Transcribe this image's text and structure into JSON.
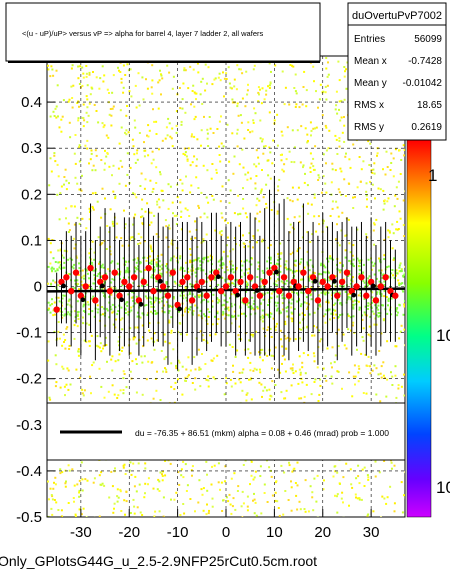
{
  "title": "<(u - uP)/uP> versus   vP => alpha for barrel 4, layer 7 ladder 2, all wafers",
  "footer": "Only_GPlotsG44G_u_2.5-2.9NFP25rCut0.5cm.root",
  "stats": {
    "name": "duOvertuPvP7002",
    "rows": [
      {
        "label": "Entries",
        "value": "56099"
      },
      {
        "label": "Mean x",
        "value": "-0.7428"
      },
      {
        "label": "Mean y",
        "value": "-0.01042"
      },
      {
        "label": "RMS x",
        "value": "18.65"
      },
      {
        "label": "RMS y",
        "value": "0.2619"
      }
    ]
  },
  "fit_legend": "du =  -76.35 +  86.51 (mkm) alpha =    0.08 +   0.46 (mrad) prob = 1.000",
  "colorbar": {
    "labels": [
      "1",
      "10",
      "10"
    ]
  },
  "colors": {
    "background_band": "#ffff66",
    "points": "#ff0000",
    "profile": "#000000",
    "fit_line": "#000000"
  },
  "chart_data": {
    "type": "scatter",
    "x_ticks": [
      "-30",
      "-20",
      "-10",
      "0",
      "10",
      "20",
      "30"
    ],
    "y_ticks": [
      "0.4",
      "0.3",
      "0.2",
      "0.1",
      "0",
      "-0.1",
      "-0.2",
      "-0.3",
      "-0.4",
      "-0.5"
    ],
    "xlim": [
      -37,
      37
    ],
    "ylim": [
      -0.5,
      0.5
    ],
    "fit": {
      "intercept": -0.0076,
      "slope": 8e-05
    },
    "series": [
      {
        "x": [
          -35,
          -34,
          -33,
          -32,
          -31,
          -30,
          -29,
          -28,
          -27,
          -26,
          -25,
          -24,
          -23,
          -22,
          -21,
          -20,
          -19,
          -18,
          -17,
          -16,
          -15,
          -14,
          -13,
          -12,
          -11,
          -10,
          -9,
          -8,
          -7,
          -6,
          -5,
          -4,
          -3,
          -2,
          -1,
          0,
          1,
          2,
          3,
          4,
          5,
          6,
          7,
          8,
          9,
          10,
          11,
          12,
          13,
          14,
          15,
          16,
          17,
          18,
          19,
          20,
          21,
          22,
          23,
          24,
          25,
          26,
          27,
          28,
          29,
          30,
          31,
          32,
          33,
          34,
          35
        ],
        "y": [
          -0.05,
          0.01,
          0.02,
          -0.01,
          0.03,
          -0.02,
          0.0,
          0.04,
          -0.03,
          0.01,
          0.02,
          -0.01,
          0.03,
          -0.02,
          0.01,
          0.0,
          0.02,
          -0.03,
          0.01,
          0.04,
          -0.01,
          0.02,
          0.0,
          -0.02,
          0.03,
          -0.04,
          0.01,
          0.02,
          -0.03,
          0.0,
          0.01,
          -0.02,
          0.02,
          0.03,
          -0.01,
          0.0,
          0.02,
          -0.01,
          0.01,
          -0.03,
          0.02,
          0.0,
          -0.02,
          0.01,
          0.03,
          0.04,
          -0.01,
          0.02,
          -0.02,
          0.01,
          0.0,
          0.03,
          -0.01,
          0.02,
          -0.03,
          0.01,
          0.0,
          0.02,
          -0.02,
          0.01,
          0.03,
          -0.01,
          0.0,
          0.02,
          -0.02,
          0.01,
          -0.03,
          0.0,
          0.02,
          -0.01,
          -0.02
        ],
        "err": [
          0.08,
          0.09,
          0.1,
          0.12,
          0.11,
          0.13,
          0.12,
          0.14,
          0.13,
          0.12,
          0.15,
          0.14,
          0.13,
          0.12,
          0.14,
          0.15,
          0.13,
          0.12,
          0.14,
          0.13,
          0.12,
          0.14,
          0.13,
          0.15,
          0.12,
          0.14,
          0.13,
          0.12,
          0.14,
          0.15,
          0.13,
          0.12,
          0.14,
          0.13,
          0.12,
          0.13,
          0.12,
          0.14,
          0.13,
          0.12,
          0.14,
          0.15,
          0.13,
          0.16,
          0.18,
          0.2,
          0.19,
          0.17,
          0.14,
          0.13,
          0.14,
          0.15,
          0.13,
          0.12,
          0.14,
          0.15,
          0.13,
          0.12,
          0.14,
          0.13,
          0.12,
          0.14,
          0.13,
          0.12,
          0.13,
          0.14,
          0.12,
          0.13,
          0.12,
          0.11,
          0.1
        ]
      }
    ]
  }
}
